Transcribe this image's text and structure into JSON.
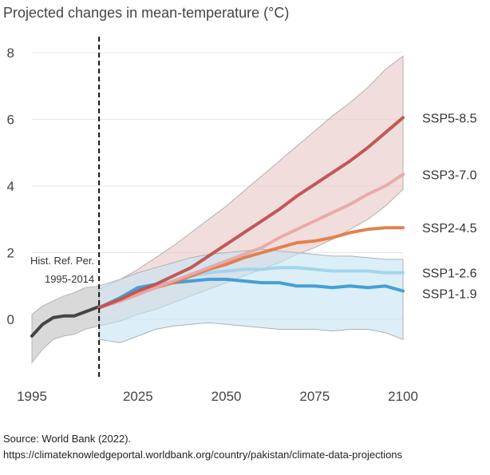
{
  "chart_data": {
    "type": "line",
    "title": "Projected changes in mean-temperature (°C)",
    "xlabel": "",
    "ylabel": "",
    "xlim": [
      1995,
      2100
    ],
    "ylim": [
      -1.6,
      8.4
    ],
    "x_ticks": [
      1995,
      2025,
      2050,
      2075,
      2100
    ],
    "y_ticks": [
      0,
      2,
      4,
      6,
      8
    ],
    "grid": true,
    "reference_line": {
      "x": 2014,
      "label_line1": "Hist. Ref. Per.",
      "label_line2": "1995-2014"
    },
    "historical": {
      "color": "#444444",
      "band_color": "#cfcfcf",
      "x": [
        1995,
        1998,
        2001,
        2004,
        2007,
        2010,
        2014
      ],
      "mean": [
        -0.5,
        -0.15,
        0.05,
        0.1,
        0.1,
        0.22,
        0.38
      ],
      "lower": [
        -1.3,
        -0.9,
        -0.6,
        -0.5,
        -0.45,
        -0.3,
        -0.2
      ],
      "upper": [
        0.15,
        0.4,
        0.55,
        0.7,
        0.8,
        0.95,
        1.0
      ]
    },
    "series": [
      {
        "name": "SSP5-8.5",
        "color": "#c0504d",
        "band_color": "#e9c6c6",
        "x": [
          2014,
          2020,
          2025,
          2030,
          2035,
          2040,
          2045,
          2050,
          2055,
          2060,
          2065,
          2070,
          2075,
          2080,
          2085,
          2090,
          2095,
          2100
        ],
        "mean": [
          0.35,
          0.6,
          0.85,
          1.05,
          1.3,
          1.55,
          1.9,
          2.25,
          2.6,
          2.95,
          3.3,
          3.7,
          4.05,
          4.4,
          4.75,
          5.15,
          5.6,
          6.05
        ],
        "lower": [
          -0.2,
          -0.05,
          0.15,
          0.3,
          0.5,
          0.7,
          0.9,
          1.1,
          1.3,
          1.5,
          1.7,
          1.95,
          2.15,
          2.4,
          2.7,
          3.0,
          3.4,
          3.9
        ],
        "upper": [
          0.9,
          1.2,
          1.5,
          1.85,
          2.2,
          2.6,
          3.0,
          3.4,
          3.85,
          4.3,
          4.75,
          5.2,
          5.65,
          6.1,
          6.5,
          6.95,
          7.5,
          7.9
        ]
      },
      {
        "name": "SSP3-7.0",
        "color": "#e8a8a6",
        "band_color": "none",
        "x": [
          2014,
          2020,
          2025,
          2030,
          2035,
          2040,
          2045,
          2050,
          2055,
          2060,
          2065,
          2070,
          2075,
          2080,
          2085,
          2090,
          2095,
          2100
        ],
        "mean": [
          0.35,
          0.55,
          0.75,
          0.95,
          1.15,
          1.35,
          1.55,
          1.75,
          1.95,
          2.15,
          2.45,
          2.7,
          2.95,
          3.2,
          3.45,
          3.75,
          4.0,
          4.35
        ],
        "lower": [],
        "upper": []
      },
      {
        "name": "SSP2-4.5",
        "color": "#e07b45",
        "band_color": "none",
        "x": [
          2014,
          2020,
          2025,
          2030,
          2035,
          2040,
          2045,
          2050,
          2055,
          2060,
          2065,
          2070,
          2075,
          2080,
          2085,
          2090,
          2095,
          2100
        ],
        "mean": [
          0.35,
          0.55,
          0.75,
          0.95,
          1.1,
          1.3,
          1.5,
          1.65,
          1.85,
          2.0,
          2.15,
          2.3,
          2.35,
          2.45,
          2.6,
          2.7,
          2.75,
          2.75
        ],
        "lower": [],
        "upper": []
      },
      {
        "name": "SSP1-2.6",
        "color": "#9fd3ea",
        "band_color": "none",
        "x": [
          2014,
          2020,
          2025,
          2030,
          2035,
          2040,
          2045,
          2050,
          2055,
          2060,
          2065,
          2070,
          2075,
          2080,
          2085,
          2090,
          2095,
          2100
        ],
        "mean": [
          0.35,
          0.6,
          0.85,
          1.0,
          1.15,
          1.3,
          1.4,
          1.45,
          1.5,
          1.5,
          1.55,
          1.55,
          1.5,
          1.45,
          1.45,
          1.45,
          1.4,
          1.4
        ],
        "lower": [],
        "upper": []
      },
      {
        "name": "SSP1-1.9",
        "color": "#3a9bd5",
        "band_color": "#c4e4f4",
        "x": [
          2014,
          2020,
          2025,
          2030,
          2035,
          2040,
          2045,
          2050,
          2055,
          2060,
          2065,
          2070,
          2075,
          2080,
          2085,
          2090,
          2095,
          2100
        ],
        "mean": [
          0.35,
          0.65,
          0.95,
          1.05,
          1.1,
          1.15,
          1.2,
          1.2,
          1.15,
          1.1,
          1.1,
          1.0,
          1.0,
          0.95,
          1.0,
          0.95,
          1.0,
          0.85
        ],
        "lower": [
          -0.6,
          -0.7,
          -0.5,
          -0.3,
          -0.2,
          -0.15,
          -0.1,
          -0.15,
          -0.2,
          -0.25,
          -0.3,
          -0.3,
          -0.3,
          -0.35,
          -0.3,
          -0.3,
          -0.4,
          -0.6
        ],
        "upper": [
          1.0,
          1.2,
          1.4,
          1.55,
          1.7,
          1.85,
          1.95,
          2.0,
          2.05,
          2.1,
          2.05,
          2.0,
          1.95,
          1.9,
          1.9,
          1.85,
          1.8,
          1.8
        ]
      }
    ]
  },
  "source": {
    "line1": "Source: World Bank (2022).",
    "line2": "https://climateknowledgeportal.worldbank.org/country/pakistan/climate-data-projections"
  }
}
